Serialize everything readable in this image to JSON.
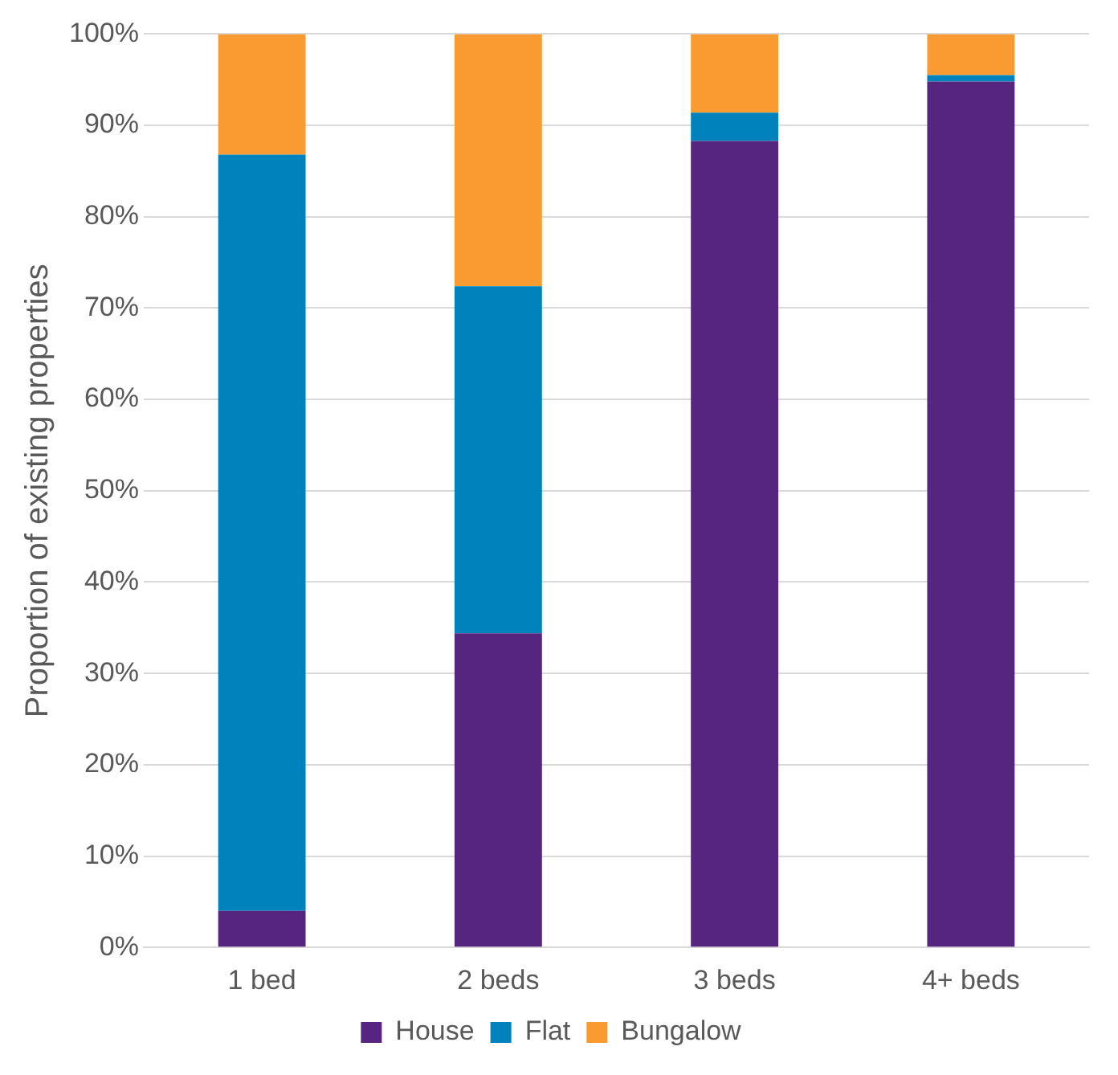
{
  "chart_data": {
    "type": "bar",
    "stacked": true,
    "ylabel": "Proportion of existing properties",
    "categories": [
      "1 bed",
      "2 beds",
      "3 beds",
      "4+ beds"
    ],
    "series": [
      {
        "name": "House",
        "color": "#56257f",
        "values": [
          4,
          34.4,
          88.3,
          94.8
        ]
      },
      {
        "name": "Flat",
        "color": "#0082bd",
        "values": [
          82.8,
          38,
          3.1,
          0.7
        ]
      },
      {
        "name": "Bungalow",
        "color": "#f99b31",
        "values": [
          13.2,
          27.6,
          8.6,
          4.5
        ]
      }
    ],
    "ylim": [
      0,
      100
    ],
    "yticks": [
      {
        "value": 0,
        "label": "0%"
      },
      {
        "value": 10,
        "label": "10%"
      },
      {
        "value": 20,
        "label": "20%"
      },
      {
        "value": 30,
        "label": "30%"
      },
      {
        "value": 40,
        "label": "40%"
      },
      {
        "value": 50,
        "label": "50%"
      },
      {
        "value": 60,
        "label": "60%"
      },
      {
        "value": 70,
        "label": "70%"
      },
      {
        "value": 80,
        "label": "80%"
      },
      {
        "value": 90,
        "label": "90%"
      },
      {
        "value": 100,
        "label": "100%"
      }
    ],
    "grid": "y",
    "legend": "bottom"
  }
}
